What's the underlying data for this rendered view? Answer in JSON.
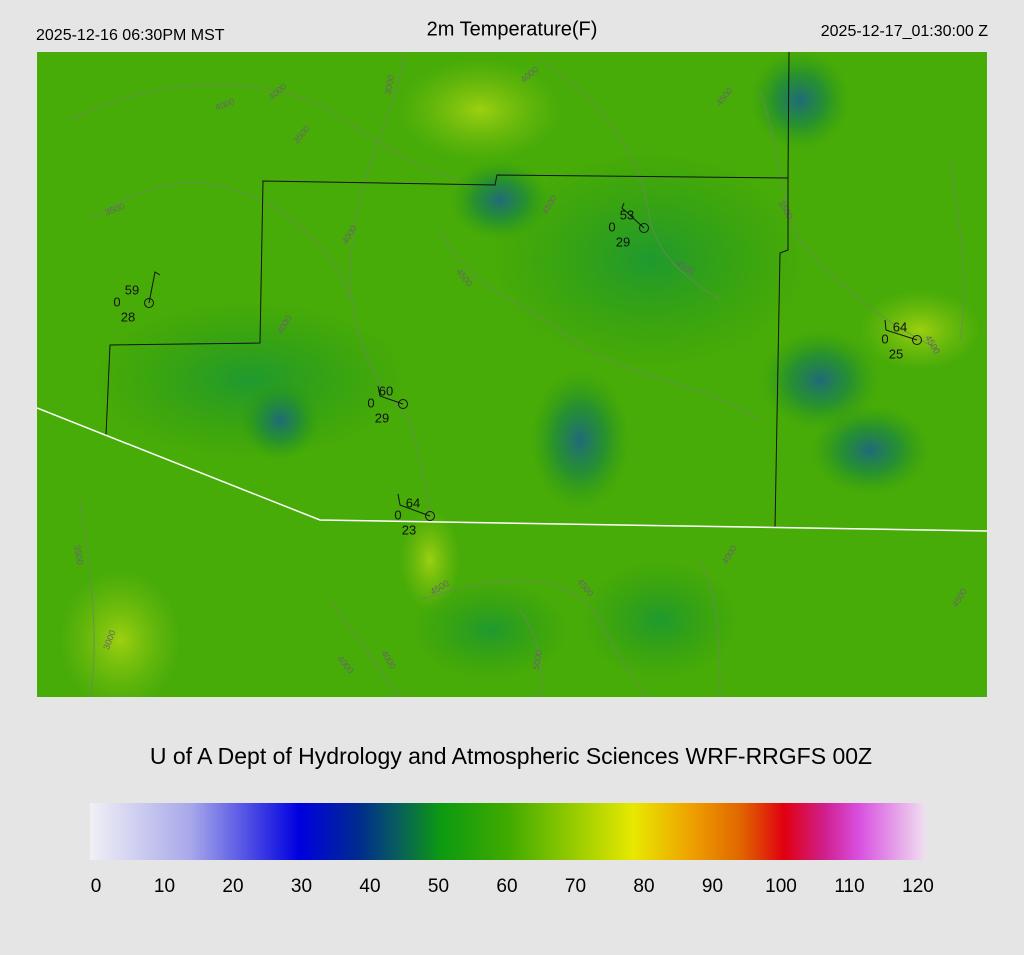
{
  "header": {
    "left": "2025-12-16 06:30PM MST",
    "title": "2m Temperature(F)",
    "right": "2025-12-17_01:30:00 Z"
  },
  "map": {
    "stations": [
      {
        "temperature": 59,
        "wind": 0,
        "dewpoint": 28
      },
      {
        "temperature": 53,
        "wind": 0,
        "dewpoint": 29
      },
      {
        "temperature": 64,
        "wind": 0,
        "dewpoint": 25
      },
      {
        "temperature": 60,
        "wind": 0,
        "dewpoint": 29
      },
      {
        "temperature": 64,
        "wind": 0,
        "dewpoint": 23
      }
    ],
    "contour_labels": [
      4000,
      4000,
      3000,
      3500,
      4000,
      3500,
      4000,
      4500,
      4000,
      4500,
      4500,
      3500,
      4500,
      3500,
      3000,
      4000,
      4500,
      4000,
      5000,
      4500,
      4000,
      4500,
      4500
    ]
  },
  "credit": "U of A Dept of Hydrology and Atmospheric Sciences WRF-RRGFS 00Z",
  "colorbar": {
    "ticks": [
      0,
      10,
      20,
      30,
      40,
      50,
      60,
      70,
      80,
      90,
      100,
      110,
      120
    ]
  }
}
